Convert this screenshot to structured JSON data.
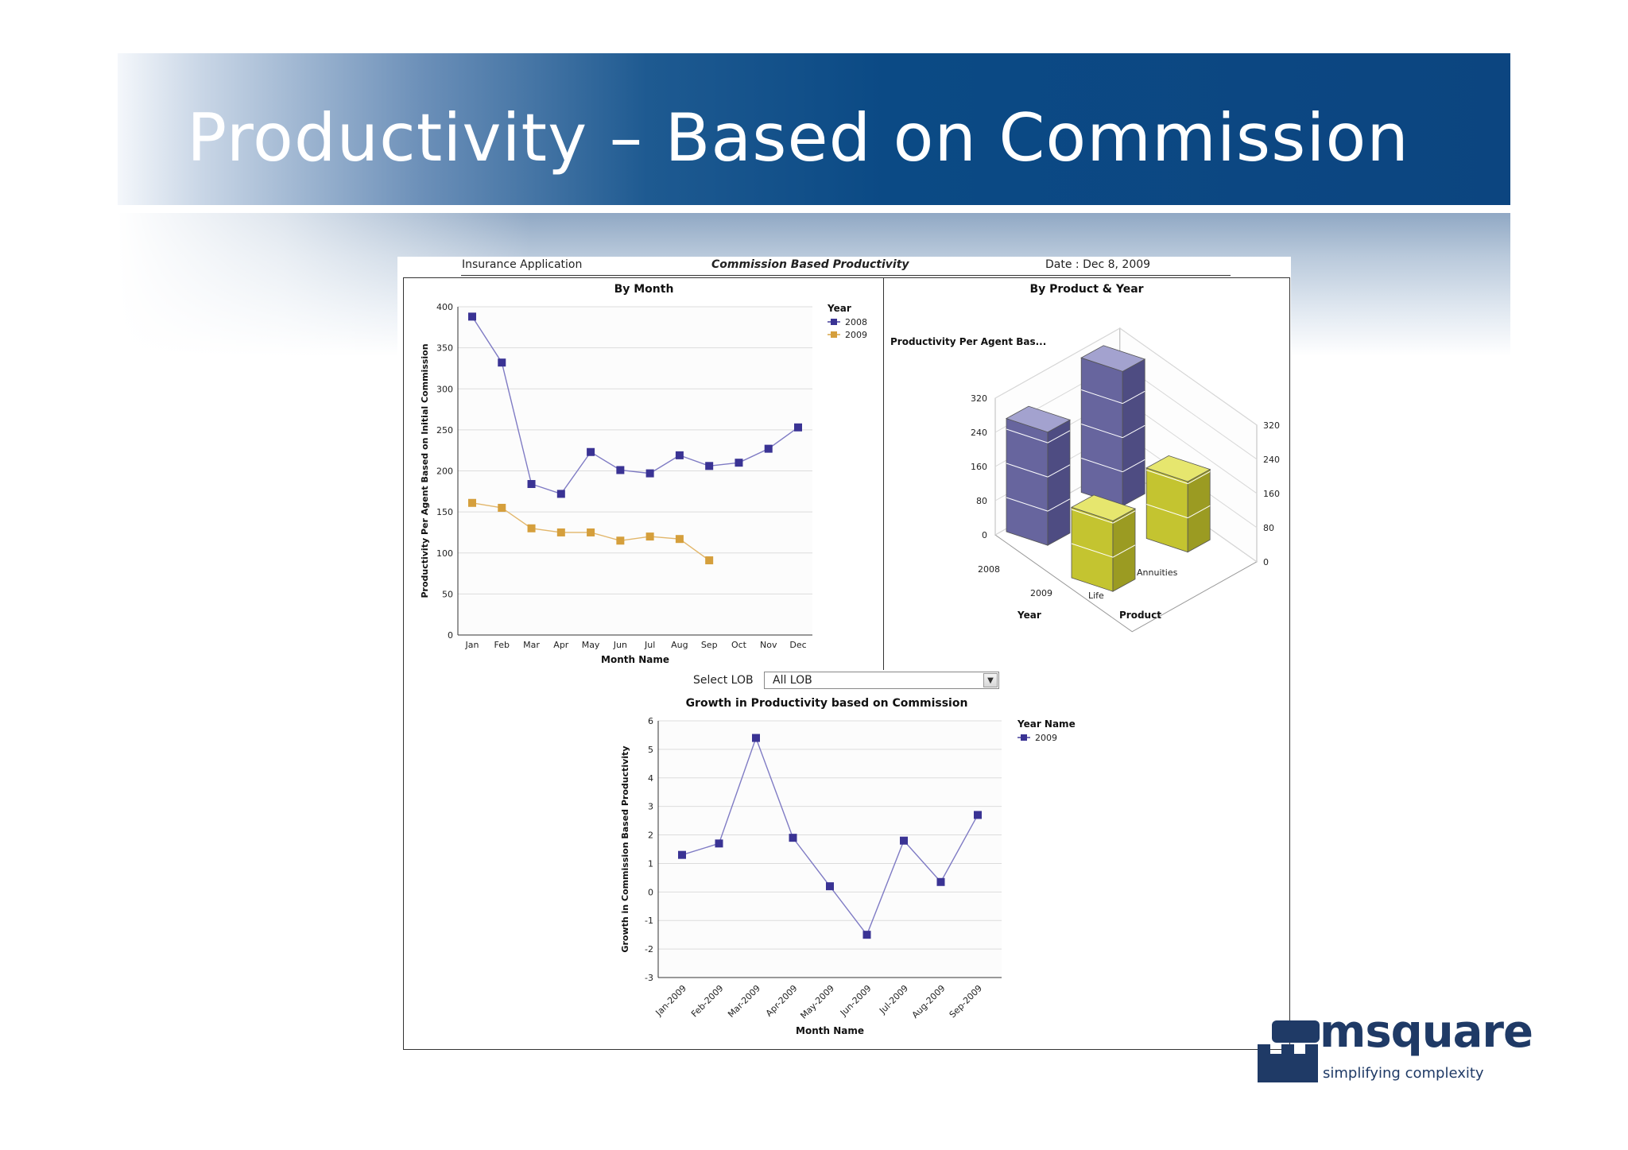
{
  "slide": {
    "title": "Productivity – Based on Commission"
  },
  "report": {
    "app_name": "Insurance Application",
    "report_title": "Commission Based Productivity",
    "date_text": "Date : Dec 8, 2009",
    "lob_label": "Select LOB",
    "lob_value": "All LOB"
  },
  "logo": {
    "name": "msquare",
    "tagline": "simplifying complexity"
  },
  "colors": {
    "series_2008": "#3a3394",
    "series_2009": "#d59f3c",
    "bar_2008": "#6e6ca6",
    "bar_2009": "#c9c93a",
    "banner": "#0b4a85"
  },
  "chart_data": [
    {
      "type": "line",
      "title": "By Month",
      "xlabel": "Month Name",
      "ylabel": "Productivity Per Agent Based on Initial Commission",
      "categories": [
        "Jan",
        "Feb",
        "Mar",
        "Apr",
        "May",
        "Jun",
        "Jul",
        "Aug",
        "Sep",
        "Oct",
        "Nov",
        "Dec"
      ],
      "ylim": [
        0,
        400
      ],
      "yticks": [
        0,
        50,
        100,
        150,
        200,
        250,
        300,
        350,
        400
      ],
      "legend_title": "Year",
      "legend_position": "top-right",
      "grid": true,
      "series": [
        {
          "name": "2008",
          "values": [
            388,
            332,
            184,
            172,
            223,
            201,
            197,
            219,
            206,
            210,
            227,
            253
          ]
        },
        {
          "name": "2009",
          "values": [
            161,
            155,
            130,
            125,
            125,
            115,
            120,
            117,
            91,
            null,
            null,
            null
          ]
        }
      ]
    },
    {
      "type": "bar",
      "title": "By Product & Year",
      "subtitle": "Productivity Per Agent Bas...",
      "xlabel": "Year",
      "ylabel": "",
      "zlabel": "Product",
      "categories": [
        "2008",
        "2009"
      ],
      "products": [
        "Life",
        "Annuities"
      ],
      "ylim": [
        0,
        320
      ],
      "yticks": [
        0,
        80,
        160,
        240,
        320
      ],
      "series": [
        {
          "name": "2008",
          "values": [
            265,
            315
          ]
        },
        {
          "name": "2009",
          "values": [
            165,
            165
          ]
        }
      ]
    },
    {
      "type": "line",
      "title": "Growth in Productivity based on Commission",
      "xlabel": "Month Name",
      "ylabel": "Growth in Commission Based Productivity",
      "categories": [
        "Jan-2009",
        "Feb-2009",
        "Mar-2009",
        "Apr-2009",
        "May-2009",
        "Jun-2009",
        "Jul-2009",
        "Aug-2009",
        "Sep-2009"
      ],
      "ylim": [
        -3,
        6
      ],
      "yticks": [
        -3,
        -2,
        -1,
        0,
        1,
        2,
        3,
        4,
        5,
        6
      ],
      "legend_title": "Year Name",
      "legend_position": "top-right",
      "grid": true,
      "series": [
        {
          "name": "2009",
          "values": [
            1.3,
            1.7,
            5.4,
            1.9,
            0.2,
            -1.5,
            1.8,
            0.35,
            2.7
          ]
        }
      ]
    }
  ]
}
